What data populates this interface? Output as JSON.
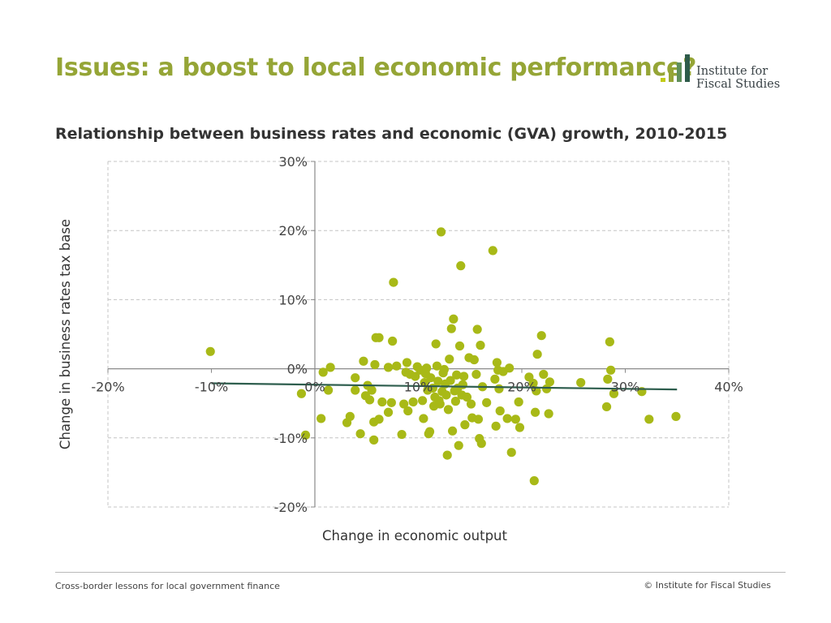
{
  "header": {
    "title": "Issues: a boost to local economic performance?",
    "logo": {
      "line1": "Institute for",
      "line2": "Fiscal Studies",
      "bar_colors": [
        "#c2cb17",
        "#95a536",
        "#5f8f5a",
        "#2e5b4a"
      ]
    }
  },
  "chart_data": {
    "type": "scatter",
    "title": "Relationship between business rates and economic (GVA) growth, 2010-2015",
    "xlabel": "Change in economic output",
    "ylabel": "Change in business rates tax base",
    "xlim": [
      -0.2,
      0.4
    ],
    "ylim": [
      -0.2,
      0.3
    ],
    "x_ticks": [
      -0.2,
      -0.1,
      0,
      0.1,
      0.2,
      0.3,
      0.4
    ],
    "x_tick_labels": [
      "-20%",
      "-10%",
      "0%",
      "10%",
      "20%",
      "30%",
      "40%"
    ],
    "y_ticks": [
      -0.2,
      -0.1,
      0,
      0.1,
      0.2,
      0.3
    ],
    "y_tick_labels": [
      "-20%",
      "-10%",
      "0%",
      "10%",
      "20%",
      "30%"
    ],
    "grid": true,
    "marker_color": "#a8b917",
    "trend_color": "#2e5e4e",
    "trendline": {
      "x": [
        -0.1,
        0.35
      ],
      "y": [
        -0.021,
        -0.03
      ]
    },
    "points": [
      [
        -0.101,
        0.025
      ],
      [
        -0.013,
        -0.036
      ],
      [
        -0.009,
        -0.096
      ],
      [
        0.006,
        -0.072
      ],
      [
        0.008,
        -0.005
      ],
      [
        0.013,
        -0.031
      ],
      [
        0.015,
        0.002
      ],
      [
        0.031,
        -0.078
      ],
      [
        0.034,
        -0.069
      ],
      [
        0.039,
        -0.031
      ],
      [
        0.039,
        -0.013
      ],
      [
        0.044,
        -0.094
      ],
      [
        0.047,
        0.011
      ],
      [
        0.049,
        -0.039
      ],
      [
        0.051,
        -0.024
      ],
      [
        0.053,
        -0.045
      ],
      [
        0.055,
        -0.031
      ],
      [
        0.057,
        -0.077
      ],
      [
        0.057,
        -0.103
      ],
      [
        0.058,
        0.006
      ],
      [
        0.059,
        0.045
      ],
      [
        0.062,
        0.045
      ],
      [
        0.062,
        -0.073
      ],
      [
        0.065,
        -0.048
      ],
      [
        0.071,
        -0.063
      ],
      [
        0.071,
        0.002
      ],
      [
        0.074,
        -0.049
      ],
      [
        0.075,
        0.04
      ],
      [
        0.076,
        0.125
      ],
      [
        0.079,
        0.004
      ],
      [
        0.084,
        -0.095
      ],
      [
        0.086,
        -0.051
      ],
      [
        0.088,
        -0.005
      ],
      [
        0.089,
        0.009
      ],
      [
        0.09,
        -0.061
      ],
      [
        0.092,
        -0.008
      ],
      [
        0.095,
        -0.048
      ],
      [
        0.097,
        -0.011
      ],
      [
        0.099,
        0.003
      ],
      [
        0.102,
        -0.002
      ],
      [
        0.104,
        -0.046
      ],
      [
        0.105,
        -0.072
      ],
      [
        0.106,
        -0.02
      ],
      [
        0.107,
        -0.007
      ],
      [
        0.108,
        0.001
      ],
      [
        0.109,
        -0.031
      ],
      [
        0.11,
        -0.094
      ],
      [
        0.111,
        -0.091
      ],
      [
        0.112,
        -0.013
      ],
      [
        0.114,
        -0.028
      ],
      [
        0.115,
        -0.054
      ],
      [
        0.116,
        -0.041
      ],
      [
        0.117,
        0.036
      ],
      [
        0.118,
        0.004
      ],
      [
        0.119,
        -0.018
      ],
      [
        0.12,
        -0.046
      ],
      [
        0.121,
        -0.051
      ],
      [
        0.122,
        0.198
      ],
      [
        0.123,
        -0.033
      ],
      [
        0.124,
        -0.006
      ],
      [
        0.125,
        -0.001
      ],
      [
        0.126,
        -0.022
      ],
      [
        0.127,
        -0.038
      ],
      [
        0.128,
        -0.125
      ],
      [
        0.129,
        -0.059
      ],
      [
        0.13,
        0.014
      ],
      [
        0.131,
        -0.017
      ],
      [
        0.132,
        0.058
      ],
      [
        0.133,
        -0.09
      ],
      [
        0.134,
        0.072
      ],
      [
        0.135,
        -0.032
      ],
      [
        0.136,
        -0.047
      ],
      [
        0.137,
        -0.009
      ],
      [
        0.138,
        -0.028
      ],
      [
        0.139,
        -0.111
      ],
      [
        0.14,
        0.033
      ],
      [
        0.141,
        0.149
      ],
      [
        0.142,
        -0.038
      ],
      [
        0.143,
        -0.023
      ],
      [
        0.144,
        -0.011
      ],
      [
        0.145,
        -0.081
      ],
      [
        0.147,
        -0.041
      ],
      [
        0.149,
        0.016
      ],
      [
        0.151,
        -0.051
      ],
      [
        0.152,
        -0.071
      ],
      [
        0.154,
        0.013
      ],
      [
        0.156,
        -0.008
      ],
      [
        0.157,
        0.057
      ],
      [
        0.158,
        -0.073
      ],
      [
        0.159,
        -0.101
      ],
      [
        0.16,
        0.034
      ],
      [
        0.161,
        -0.108
      ],
      [
        0.162,
        -0.026
      ],
      [
        0.166,
        -0.049
      ],
      [
        0.172,
        0.171
      ],
      [
        0.174,
        -0.015
      ],
      [
        0.175,
        -0.083
      ],
      [
        0.176,
        0.009
      ],
      [
        0.177,
        -0.002
      ],
      [
        0.178,
        -0.029
      ],
      [
        0.179,
        -0.061
      ],
      [
        0.182,
        -0.004
      ],
      [
        0.186,
        -0.072
      ],
      [
        0.188,
        0.001
      ],
      [
        0.19,
        -0.121
      ],
      [
        0.194,
        -0.073
      ],
      [
        0.197,
        -0.048
      ],
      [
        0.198,
        -0.085
      ],
      [
        0.207,
        -0.012
      ],
      [
        0.211,
        -0.021
      ],
      [
        0.212,
        -0.162
      ],
      [
        0.213,
        -0.063
      ],
      [
        0.214,
        -0.032
      ],
      [
        0.215,
        0.021
      ],
      [
        0.219,
        0.048
      ],
      [
        0.221,
        -0.008
      ],
      [
        0.224,
        -0.029
      ],
      [
        0.226,
        -0.065
      ],
      [
        0.227,
        -0.019
      ],
      [
        0.257,
        -0.02
      ],
      [
        0.282,
        -0.055
      ],
      [
        0.283,
        -0.015
      ],
      [
        0.285,
        0.039
      ],
      [
        0.286,
        -0.002
      ],
      [
        0.289,
        -0.036
      ],
      [
        0.316,
        -0.033
      ],
      [
        0.323,
        -0.073
      ],
      [
        0.349,
        -0.069
      ]
    ]
  },
  "footer": {
    "left": "Cross-border lessons for local government finance",
    "right": "© Institute for Fiscal Studies"
  }
}
